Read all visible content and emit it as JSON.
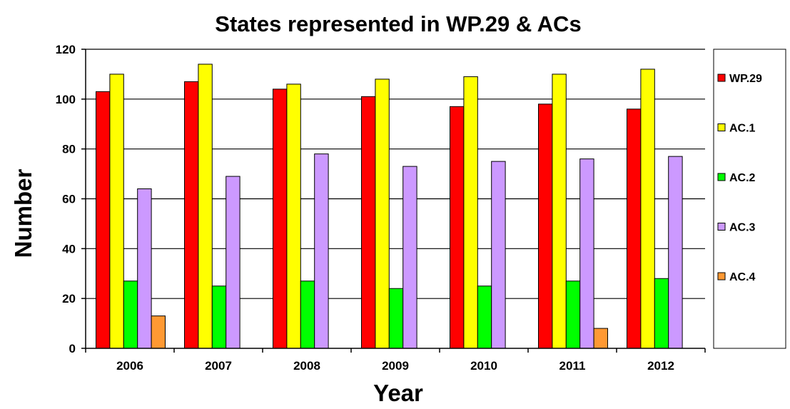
{
  "chart_data": {
    "type": "bar",
    "title": "States represented in WP.29 & ACs",
    "xlabel": "Year",
    "ylabel": "Number",
    "ylim": [
      0,
      120
    ],
    "yticks": [
      0,
      20,
      40,
      60,
      80,
      100,
      120
    ],
    "grid": true,
    "legend_position": "right",
    "categories": [
      "2006",
      "2007",
      "2008",
      "2009",
      "2010",
      "2011",
      "2012"
    ],
    "series": [
      {
        "name": "WP.29",
        "color": "#ff0000",
        "values": [
          103,
          107,
          104,
          101,
          97,
          98,
          96
        ]
      },
      {
        "name": "AC.1",
        "color": "#ffff00",
        "values": [
          110,
          114,
          106,
          108,
          109,
          110,
          112
        ]
      },
      {
        "name": "AC.2",
        "color": "#00ff00",
        "values": [
          27,
          25,
          27,
          24,
          25,
          27,
          28
        ]
      },
      {
        "name": "AC.3",
        "color": "#cc99ff",
        "values": [
          64,
          69,
          78,
          73,
          75,
          76,
          77
        ]
      },
      {
        "name": "AC.4",
        "color": "#ff9933",
        "values": [
          13,
          0,
          0,
          0,
          0,
          8,
          0
        ]
      }
    ]
  }
}
